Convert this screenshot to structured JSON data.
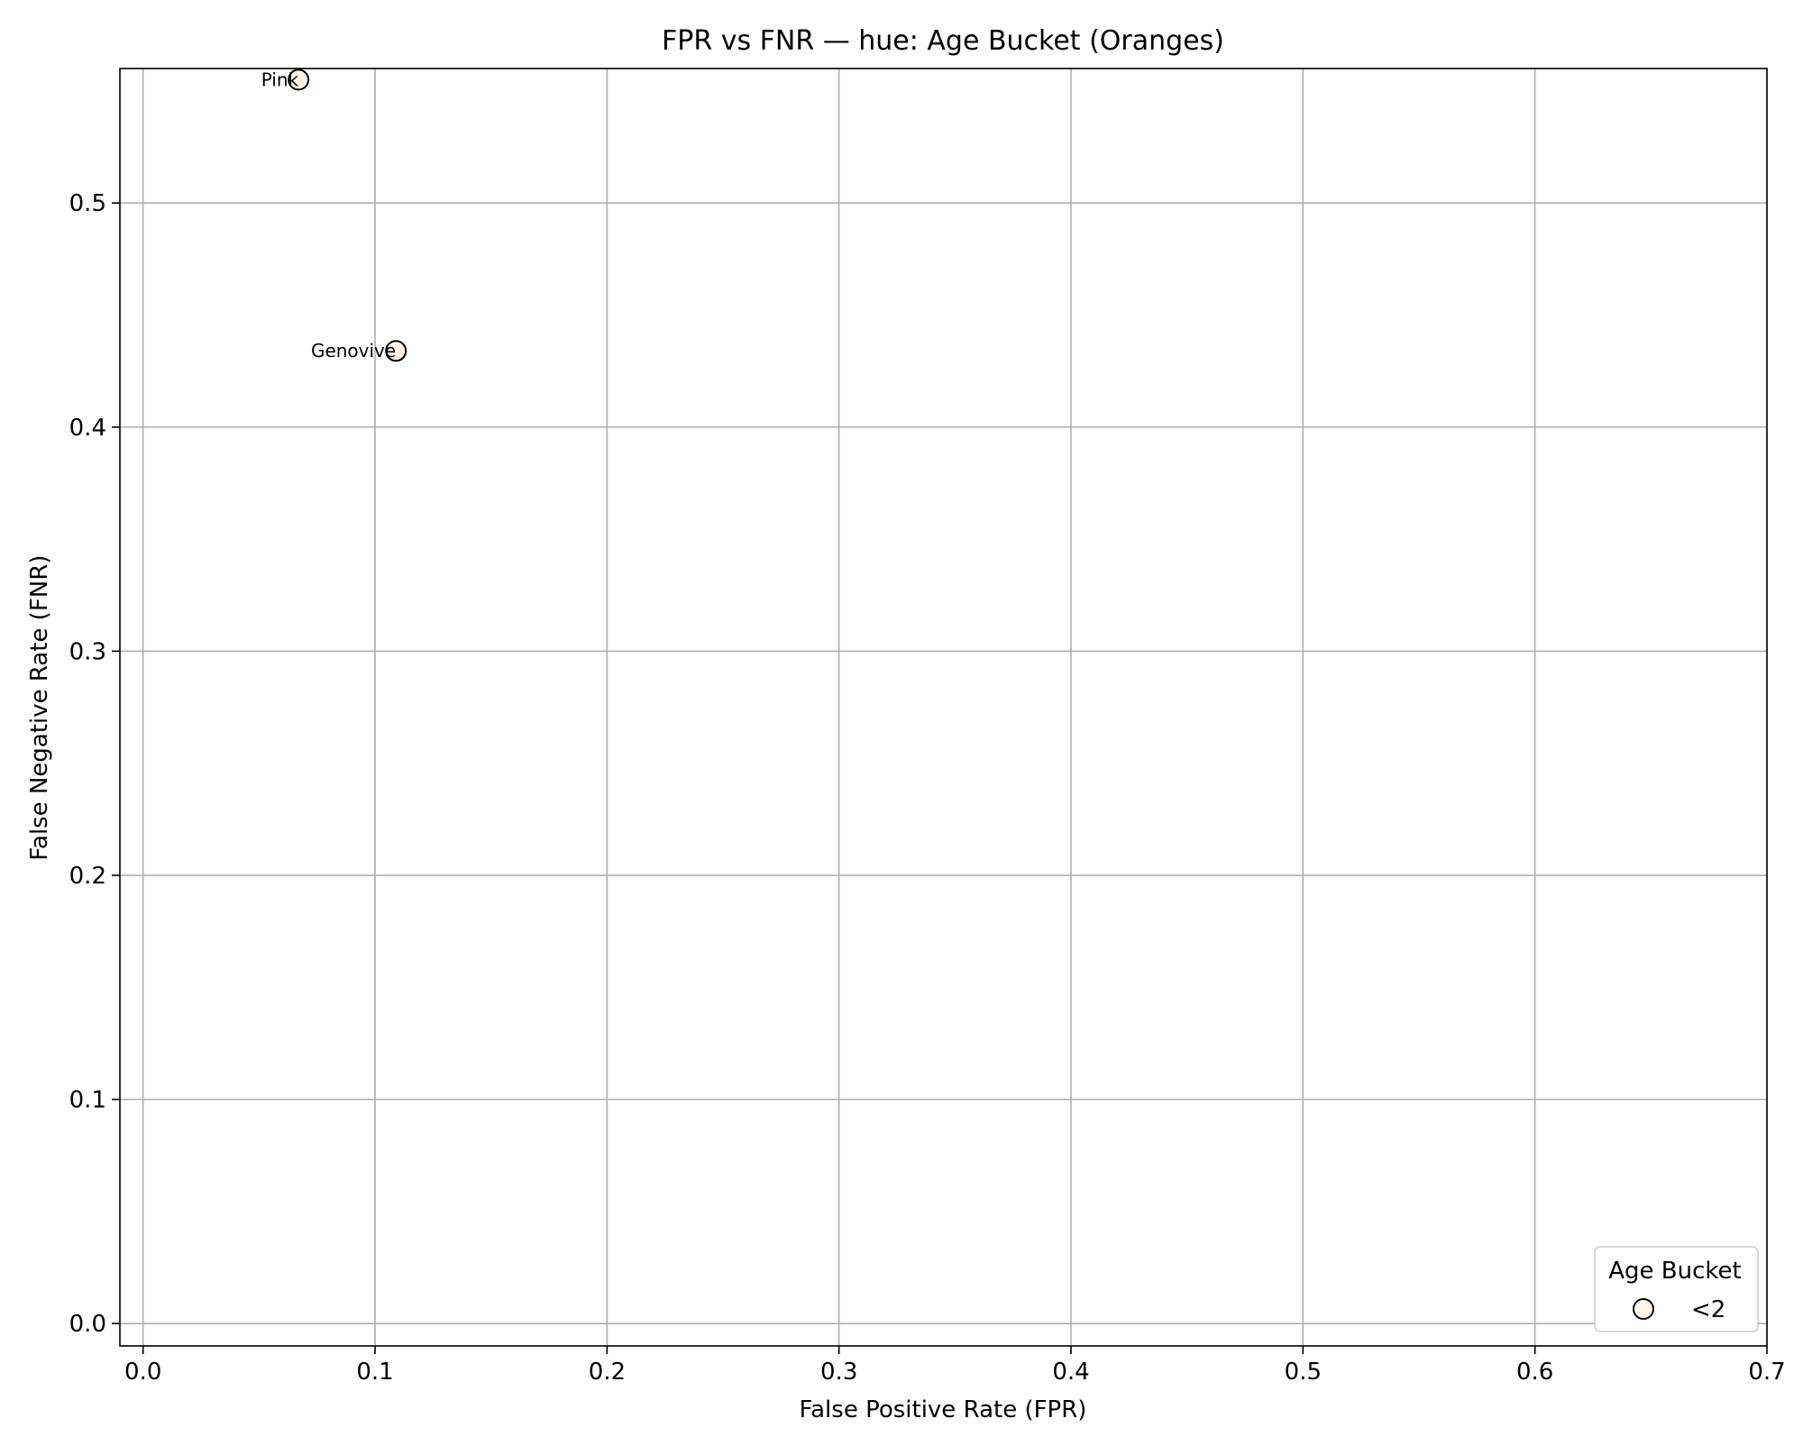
{
  "chart_data": {
    "type": "scatter",
    "title": "FPR vs FNR — hue: Age Bucket (Oranges)",
    "xlabel": "False Positive Rate (FPR)",
    "ylabel": "False Negative Rate (FNR)",
    "xlim": [
      -0.01,
      0.7
    ],
    "ylim": [
      -0.01,
      0.56
    ],
    "xticks": [
      0.0,
      0.1,
      0.2,
      0.3,
      0.4,
      0.5,
      0.6,
      0.7
    ],
    "xtick_labels": [
      "0.0",
      "0.1",
      "0.2",
      "0.3",
      "0.4",
      "0.5",
      "0.6",
      "0.7"
    ],
    "yticks": [
      0.0,
      0.1,
      0.2,
      0.3,
      0.4,
      0.5
    ],
    "ytick_labels": [
      "0.0",
      "0.1",
      "0.2",
      "0.3",
      "0.4",
      "0.5"
    ],
    "grid": true,
    "legend": {
      "title": "Age Bucket",
      "placement": "lower-right",
      "entries": [
        {
          "label": "<2",
          "color": "#fff5eb"
        }
      ]
    },
    "series": [
      {
        "name": "<2",
        "color": "#fff5eb",
        "edge_color": "#000000",
        "points": [
          {
            "label": "Pink",
            "x": 0.067,
            "y": 0.555
          },
          {
            "label": "Genovive",
            "x": 0.109,
            "y": 0.434
          }
        ]
      }
    ]
  }
}
